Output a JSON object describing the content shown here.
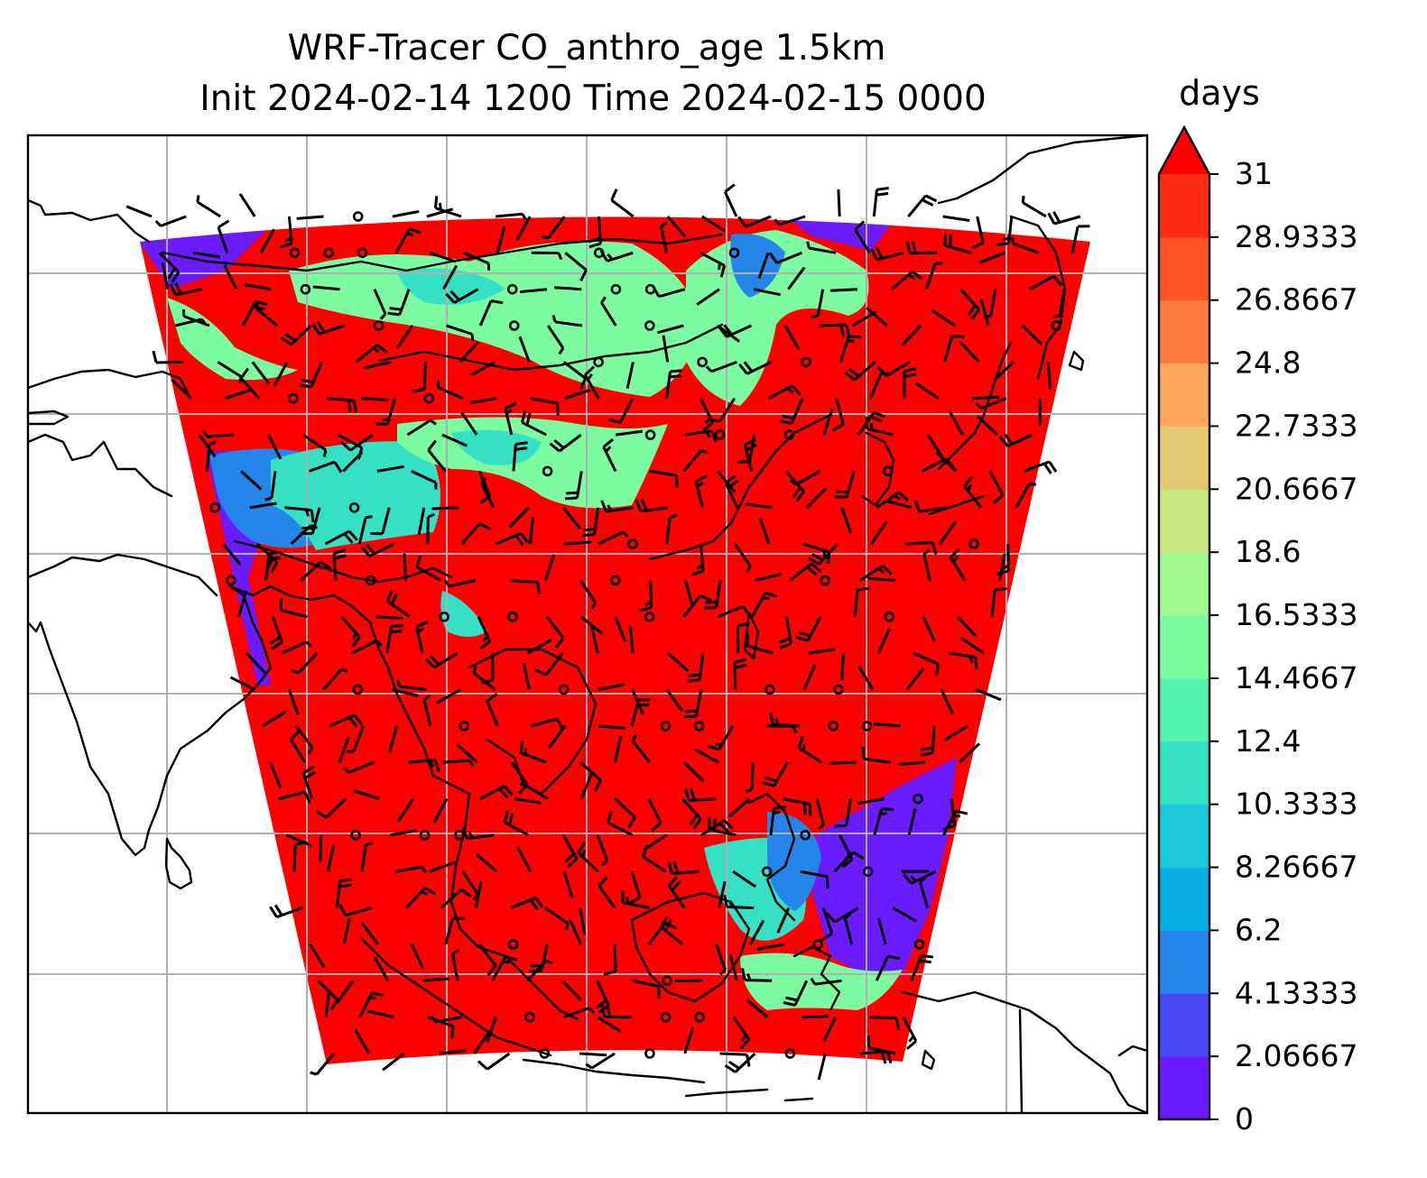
{
  "title": {
    "line1": "WRF-Tracer CO_anthro_age 1.5km",
    "line2": "Init 2024-02-14 1200 Time 2024-02-15 0000"
  },
  "colorbar": {
    "units": "days",
    "extend": "max",
    "levels": [
      0,
      2.06667,
      4.13333,
      6.2,
      8.26667,
      10.3333,
      12.4,
      14.4667,
      16.5333,
      18.6,
      20.6667,
      22.7333,
      24.8,
      26.8667,
      28.9333,
      31
    ],
    "tick_labels": [
      "0",
      "2.06667",
      "4.13333",
      "6.2",
      "8.26667",
      "10.3333",
      "12.4",
      "14.4667",
      "16.5333",
      "18.6",
      "20.6667",
      "22.7333",
      "24.8",
      "26.8667",
      "28.9333",
      "31"
    ],
    "colors": [
      "#6a1cff",
      "#4848f4",
      "#2585e8",
      "#09aee4",
      "#1bc8dc",
      "#36e0c4",
      "#53f2b0",
      "#7cfba0",
      "#a2f890",
      "#c9e683",
      "#e6c873",
      "#ffa85c",
      "#ff7c40",
      "#ff5428",
      "#ff2c14"
    ],
    "extend_color": "#ff0000"
  },
  "map": {
    "field_name": "CO_anthro_age",
    "dominant_color": "#ff0000",
    "young_air_color": "#6a1cff",
    "mid_age_colors": [
      "#36e0c4",
      "#7cfba0",
      "#1bc8dc",
      "#2585e8"
    ],
    "gridlines": true,
    "coastline_color": "#000000",
    "wind_barbs": true
  }
}
